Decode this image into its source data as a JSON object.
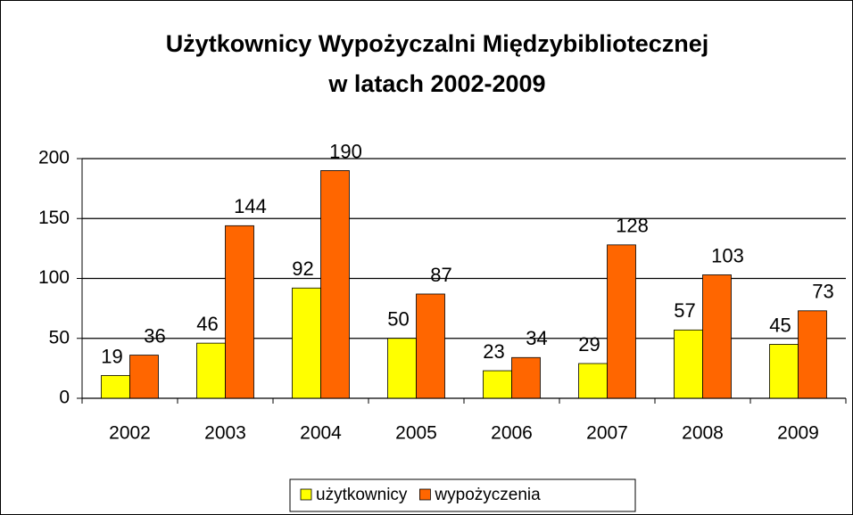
{
  "chart_data": {
    "type": "bar",
    "title": [
      "Użytkownicy Wypożyczalni Międzybibliotecznej",
      "w latach 2002-2009"
    ],
    "categories": [
      "2002",
      "2003",
      "2004",
      "2005",
      "2006",
      "2007",
      "2008",
      "2009"
    ],
    "series": [
      {
        "name": "użytkownicy",
        "color": "#ffff00",
        "values": [
          19,
          46,
          92,
          50,
          23,
          29,
          57,
          45
        ]
      },
      {
        "name": "wypożyczenia",
        "color": "#ff6600",
        "values": [
          36,
          144,
          190,
          87,
          34,
          128,
          103,
          73
        ]
      }
    ],
    "ylim": [
      0,
      200
    ],
    "yticks": [
      0,
      50,
      100,
      150,
      200
    ],
    "grid": true,
    "legend": "bottom"
  }
}
